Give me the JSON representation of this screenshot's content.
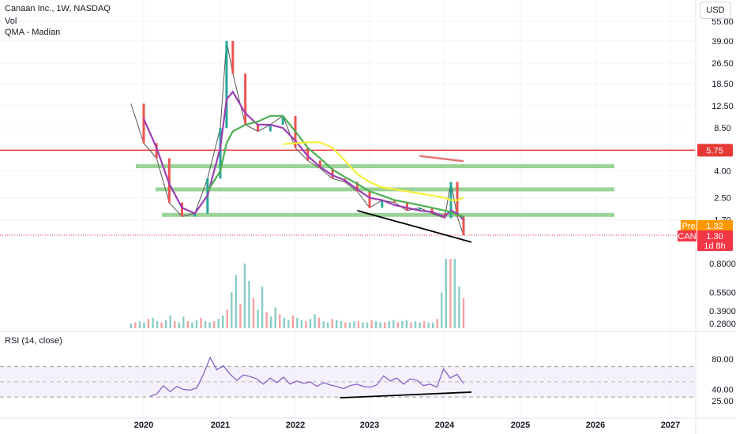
{
  "header": {
    "symbol_line": "Canaan Inc., 1W, NASDAQ",
    "volume_label": "Vol",
    "indicator_label": "QMA - Madian",
    "rsi_label": "RSI (14, close)",
    "currency": "USD"
  },
  "colors": {
    "up": "#26a69a",
    "down": "#ef5350",
    "resistance": "#e53935",
    "zones": "#8fce8c",
    "ma_purple": "#9c3fb4",
    "ma_green": "#4caf50",
    "ma_yellow": "#f5f03a",
    "trendline": "#000000",
    "rsi_line": "#7e57c2",
    "rsi_band": "#ede7f6",
    "pre_badge": "#ff9800",
    "can_badge": "#f23645"
  },
  "price_scale": {
    "ticks": [
      "55.00",
      "39.00",
      "26.50",
      "18.50",
      "12.50",
      "8.50",
      "5.75",
      "4.00",
      "2.50",
      "1.70",
      "1.30"
    ],
    "tick_values": [
      55,
      39,
      26.5,
      18.5,
      12.5,
      8.5,
      5.75,
      4.0,
      2.5,
      1.7,
      1.3
    ]
  },
  "volume_scale": {
    "ticks": [
      "0.8000",
      "0.5500",
      "0.3900",
      "0.2800"
    ],
    "tick_values": [
      0.8,
      0.55,
      0.39,
      0.28
    ]
  },
  "rsi_scale": {
    "ticks": [
      "80.00",
      "40.00",
      "25.00"
    ],
    "tick_values": [
      80,
      40,
      25
    ]
  },
  "price_badges": {
    "resistance": {
      "label": "",
      "value": "5.75"
    },
    "pre": {
      "label": "Pre",
      "value": "1.32"
    },
    "last": {
      "label": "CAN",
      "value": "1.30",
      "countdown": "1d 8h"
    }
  },
  "x_axis": {
    "labels": [
      "2020",
      "2021",
      "2022",
      "2023",
      "2024",
      "2025",
      "2026",
      "2027"
    ]
  },
  "chart_data": [
    {
      "type": "line",
      "role": "price",
      "title": "Canaan Inc., 1W, NASDAQ",
      "y_scale": "log",
      "ylim": [
        1.0,
        60.0
      ],
      "x": [
        "2019-11",
        "2020-01",
        "2020-03",
        "2020-05",
        "2020-07",
        "2020-09",
        "2020-11",
        "2021-01",
        "2021-02",
        "2021-03",
        "2021-05",
        "2021-07",
        "2021-09",
        "2021-11",
        "2022-01",
        "2022-03",
        "2022-05",
        "2022-07",
        "2022-09",
        "2022-11",
        "2023-01",
        "2023-03",
        "2023-05",
        "2023-07",
        "2023-09",
        "2023-11",
        "2024-01",
        "2024-02",
        "2024-03",
        "2024-04"
      ],
      "series": [
        {
          "values": [
            13.0,
            6.5,
            5.0,
            2.3,
            1.8,
            1.9,
            3.5,
            8.5,
            39.0,
            22.0,
            9.0,
            8.0,
            9.0,
            10.5,
            6.0,
            4.8,
            4.2,
            3.5,
            3.3,
            2.8,
            2.1,
            2.4,
            2.3,
            2.0,
            2.1,
            1.9,
            1.75,
            3.3,
            1.8,
            1.3
          ]
        }
      ],
      "moving_averages": {
        "purple": [
          null,
          10.0,
          6.0,
          3.2,
          2.1,
          1.9,
          2.6,
          6.0,
          14.0,
          16.0,
          11.0,
          9.0,
          9.0,
          8.5,
          6.8,
          5.2,
          4.3,
          3.7,
          3.4,
          2.9,
          2.5,
          2.4,
          2.2,
          2.1,
          2.0,
          1.95,
          1.8,
          2.0,
          1.9,
          1.7
        ],
        "green": [
          null,
          null,
          null,
          null,
          null,
          null,
          2.8,
          4.0,
          6.5,
          8.0,
          9.0,
          9.5,
          10.5,
          10.5,
          8.0,
          6.0,
          5.0,
          4.1,
          3.6,
          3.2,
          2.8,
          2.6,
          2.4,
          2.3,
          2.2,
          2.1,
          2.0,
          1.95,
          1.85,
          1.8
        ],
        "yellow": [
          null,
          null,
          null,
          null,
          null,
          null,
          null,
          null,
          null,
          null,
          null,
          null,
          null,
          6.4,
          6.5,
          6.6,
          6.6,
          6.0,
          4.8,
          3.8,
          3.3,
          3.0,
          2.9,
          2.8,
          2.7,
          2.6,
          2.5,
          2.4,
          2.4,
          2.5
        ]
      },
      "horizontal_levels": [
        5.75
      ],
      "zones": [
        {
          "from": 4.2,
          "to": 4.5
        },
        {
          "from": 2.85,
          "to": 3.0
        },
        {
          "from": 1.82,
          "to": 1.92
        }
      ],
      "resistance_stroke": {
        "from": "2023-09",
        "to": "2024-04",
        "values": [
          5.2,
          4.75
        ]
      },
      "trendline": {
        "from": "2022-11",
        "to": "2024-04",
        "values": [
          2.0,
          1.15
        ]
      }
    },
    {
      "type": "bar",
      "role": "volume",
      "label": "Vol",
      "x_start": "2019-11",
      "x_end": "2024-04",
      "values": [
        0.28,
        0.29,
        0.3,
        0.29,
        0.32,
        0.33,
        0.3,
        0.29,
        0.31,
        0.35,
        0.3,
        0.29,
        0.34,
        0.3,
        0.29,
        0.31,
        0.33,
        0.3,
        0.29,
        0.3,
        0.32,
        0.35,
        0.4,
        0.55,
        0.7,
        0.45,
        0.8,
        0.65,
        0.5,
        0.4,
        0.6,
        0.38,
        0.34,
        0.42,
        0.36,
        0.33,
        0.31,
        0.35,
        0.33,
        0.31,
        0.3,
        0.32,
        0.36,
        0.33,
        0.3,
        0.29,
        0.32,
        0.31,
        0.3,
        0.29,
        0.29,
        0.3,
        0.3,
        0.29,
        0.29,
        0.31,
        0.3,
        0.29,
        0.29,
        0.3,
        0.31,
        0.29,
        0.3,
        0.31,
        0.29,
        0.3,
        0.29,
        0.3,
        0.29,
        0.29,
        0.32,
        0.55,
        1.2,
        0.85,
        1.1,
        0.6,
        0.5
      ]
    },
    {
      "type": "line",
      "role": "rsi",
      "label": "RSI (14, close)",
      "ylim": [
        20,
        90
      ],
      "bands": [
        30,
        70
      ],
      "x_start": "2020-02",
      "x_end": "2024-04",
      "values": [
        31,
        34,
        45,
        37,
        44,
        40,
        39,
        42,
        60,
        82,
        66,
        71,
        60,
        52,
        59,
        57,
        54,
        47,
        55,
        49,
        56,
        47,
        51,
        48,
        50,
        44,
        49,
        46,
        44,
        41,
        45,
        47,
        44,
        43,
        46,
        58,
        51,
        55,
        47,
        54,
        52,
        45,
        47,
        43,
        67,
        55,
        60,
        48
      ],
      "trendline": {
        "from": "2022-11",
        "to": "2024-04",
        "values": [
          29,
          36.5
        ]
      }
    }
  ]
}
